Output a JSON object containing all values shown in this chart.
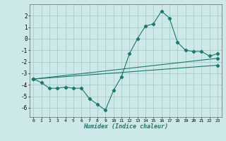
{
  "xlabel": "Humidex (Indice chaleur)",
  "ylabel": "",
  "bg_color": "#cce8e8",
  "grid_color": "#aacccc",
  "line_color": "#1a7a6e",
  "xlim": [
    -0.5,
    23.5
  ],
  "ylim": [
    -6.8,
    3.0
  ],
  "yticks": [
    -6,
    -5,
    -4,
    -3,
    -2,
    -1,
    0,
    1,
    2
  ],
  "xticks": [
    0,
    1,
    2,
    3,
    4,
    5,
    6,
    7,
    8,
    9,
    10,
    11,
    12,
    13,
    14,
    15,
    16,
    17,
    18,
    19,
    20,
    21,
    22,
    23
  ],
  "curve1_x": [
    0,
    1,
    2,
    3,
    4,
    5,
    6,
    7,
    8,
    9,
    10,
    11,
    12,
    13,
    14,
    15,
    16,
    17,
    18,
    19,
    20,
    21,
    22,
    23
  ],
  "curve1_y": [
    -3.5,
    -3.8,
    -4.3,
    -4.3,
    -4.2,
    -4.3,
    -4.3,
    -5.2,
    -5.7,
    -6.2,
    -4.5,
    -3.3,
    -1.3,
    0.0,
    1.1,
    1.3,
    2.4,
    1.8,
    -0.3,
    -1.0,
    -1.1,
    -1.1,
    -1.5,
    -1.3
  ],
  "curve2_x": [
    0,
    23
  ],
  "curve2_y": [
    -3.5,
    -1.7
  ],
  "curve3_x": [
    0,
    23
  ],
  "curve3_y": [
    -3.5,
    -2.3
  ]
}
